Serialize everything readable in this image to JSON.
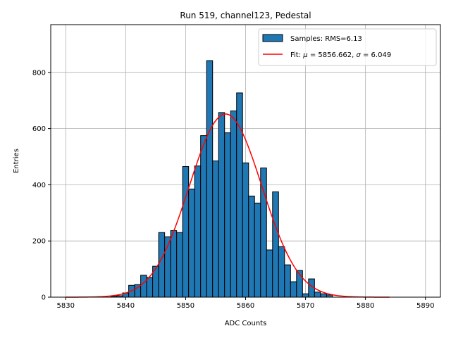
{
  "chart_data": {
    "type": "bar",
    "title": "Run 519, channel123, Pedestal",
    "xlabel": "ADC Counts",
    "ylabel": "Entries",
    "xlim": [
      5827.5,
      5892.5
    ],
    "ylim": [
      0,
      970
    ],
    "grid": true,
    "x_ticks": [
      5830,
      5840,
      5850,
      5860,
      5870,
      5880,
      5890
    ],
    "y_ticks": [
      0,
      200,
      400,
      600,
      800
    ],
    "legend_position": "top-right",
    "histogram": {
      "name": "Samples: RMS=6.13",
      "bin_width": 1,
      "color": "#1f77b4",
      "edge_color": "#000000",
      "bin_centers": [
        5838,
        5839,
        5840,
        5841,
        5842,
        5843,
        5844,
        5845,
        5846,
        5847,
        5848,
        5849,
        5850,
        5851,
        5852,
        5853,
        5854,
        5855,
        5856,
        5857,
        5858,
        5859,
        5860,
        5861,
        5862,
        5863,
        5864,
        5865,
        5866,
        5867,
        5868,
        5869,
        5870,
        5871,
        5872,
        5873,
        5874
      ],
      "counts": [
        3,
        5,
        15,
        42,
        45,
        78,
        70,
        110,
        230,
        215,
        237,
        230,
        465,
        385,
        467,
        575,
        842,
        485,
        657,
        585,
        663,
        727,
        478,
        360,
        335,
        460,
        168,
        375,
        180,
        115,
        55,
        95,
        12,
        65,
        18,
        12,
        8
      ]
    },
    "fit": {
      "name_prefix": "Fit: ",
      "name_mu": "μ",
      "name_mu_value": " = 5856.662, ",
      "name_sigma": "σ",
      "name_sigma_value": " = 6.049",
      "color": "#ff0000",
      "mu": 5856.662,
      "sigma": 6.049,
      "amplitude": 652,
      "x_range": [
        5830,
        5884
      ]
    }
  }
}
